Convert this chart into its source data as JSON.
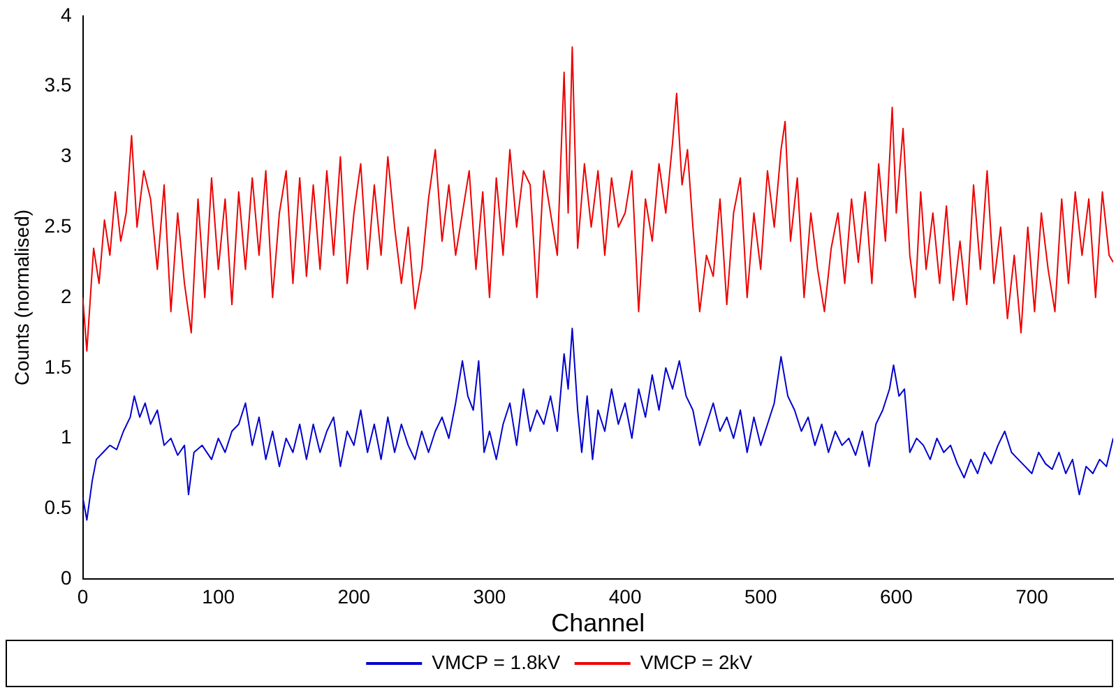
{
  "chart_data": {
    "type": "line",
    "xlabel": "Channel",
    "ylabel": "Counts (normalised)",
    "xlim": [
      0,
      760
    ],
    "xticks": [
      0,
      100,
      200,
      300,
      400,
      500,
      600,
      700
    ],
    "ylim": [
      0,
      4
    ],
    "yticks": [
      0,
      0.5,
      1,
      1.5,
      2,
      2.5,
      3,
      3.5,
      4
    ],
    "grid": false,
    "legend": "bottom",
    "marker": "none",
    "line_style": "solid",
    "series": [
      {
        "name": "VMCP = 1.8kV",
        "color": "#0000cc",
        "x": [
          0,
          3,
          7,
          10,
          15,
          20,
          25,
          30,
          35,
          38,
          42,
          46,
          50,
          55,
          60,
          65,
          70,
          75,
          78,
          82,
          88,
          95,
          100,
          105,
          110,
          115,
          120,
          125,
          130,
          135,
          140,
          145,
          150,
          155,
          160,
          165,
          170,
          175,
          180,
          185,
          190,
          195,
          200,
          205,
          210,
          215,
          220,
          225,
          230,
          235,
          240,
          245,
          250,
          255,
          260,
          265,
          270,
          275,
          280,
          284,
          288,
          292,
          296,
          300,
          305,
          310,
          315,
          320,
          325,
          330,
          335,
          340,
          345,
          350,
          355,
          358,
          361,
          365,
          368,
          372,
          376,
          380,
          385,
          390,
          395,
          400,
          405,
          410,
          415,
          420,
          425,
          430,
          435,
          440,
          445,
          450,
          455,
          460,
          465,
          470,
          475,
          480,
          485,
          490,
          495,
          500,
          505,
          510,
          515,
          520,
          525,
          530,
          535,
          540,
          545,
          550,
          555,
          560,
          565,
          570,
          575,
          580,
          585,
          590,
          595,
          598,
          602,
          606,
          610,
          615,
          620,
          625,
          630,
          635,
          640,
          645,
          650,
          655,
          660,
          665,
          670,
          675,
          680,
          685,
          690,
          695,
          700,
          705,
          710,
          715,
          720,
          725,
          730,
          735,
          740,
          745,
          750,
          755,
          760
        ],
        "values": [
          0.58,
          0.42,
          0.7,
          0.85,
          0.9,
          0.95,
          0.92,
          1.05,
          1.15,
          1.3,
          1.15,
          1.25,
          1.1,
          1.2,
          0.95,
          1.0,
          0.88,
          0.95,
          0.6,
          0.9,
          0.95,
          0.85,
          1.0,
          0.9,
          1.05,
          1.1,
          1.25,
          0.95,
          1.15,
          0.85,
          1.05,
          0.8,
          1.0,
          0.9,
          1.1,
          0.85,
          1.1,
          0.9,
          1.05,
          1.15,
          0.8,
          1.05,
          0.95,
          1.2,
          0.9,
          1.1,
          0.85,
          1.15,
          0.9,
          1.1,
          0.95,
          0.85,
          1.05,
          0.9,
          1.05,
          1.15,
          1.0,
          1.25,
          1.55,
          1.3,
          1.2,
          1.55,
          0.9,
          1.05,
          0.85,
          1.1,
          1.25,
          0.95,
          1.35,
          1.05,
          1.2,
          1.1,
          1.3,
          1.05,
          1.6,
          1.35,
          1.78,
          1.2,
          0.9,
          1.3,
          0.85,
          1.2,
          1.05,
          1.35,
          1.1,
          1.25,
          1.0,
          1.35,
          1.15,
          1.45,
          1.2,
          1.5,
          1.35,
          1.55,
          1.3,
          1.2,
          0.95,
          1.1,
          1.25,
          1.05,
          1.15,
          1.0,
          1.2,
          0.9,
          1.15,
          0.95,
          1.1,
          1.25,
          1.58,
          1.3,
          1.2,
          1.05,
          1.15,
          0.95,
          1.1,
          0.9,
          1.05,
          0.95,
          1.0,
          0.88,
          1.05,
          0.8,
          1.1,
          1.2,
          1.35,
          1.52,
          1.3,
          1.35,
          0.9,
          1.0,
          0.95,
          0.85,
          1.0,
          0.9,
          0.95,
          0.82,
          0.72,
          0.85,
          0.75,
          0.9,
          0.82,
          0.95,
          1.05,
          0.9,
          0.85,
          0.8,
          0.75,
          0.9,
          0.82,
          0.78,
          0.9,
          0.75,
          0.85,
          0.6,
          0.8,
          0.75,
          0.85,
          0.8,
          1.0
        ]
      },
      {
        "name": "VMCP = 2kV",
        "color": "#ee0000",
        "x": [
          0,
          3,
          8,
          12,
          16,
          20,
          24,
          28,
          32,
          36,
          40,
          45,
          50,
          55,
          60,
          65,
          70,
          75,
          80,
          85,
          90,
          95,
          100,
          105,
          110,
          115,
          120,
          125,
          130,
          135,
          140,
          145,
          150,
          155,
          160,
          165,
          170,
          175,
          180,
          185,
          190,
          195,
          200,
          205,
          210,
          215,
          220,
          225,
          230,
          235,
          240,
          245,
          250,
          255,
          260,
          265,
          270,
          275,
          280,
          285,
          290,
          295,
          300,
          305,
          310,
          315,
          320,
          325,
          330,
          335,
          340,
          345,
          350,
          355,
          358,
          361,
          365,
          370,
          375,
          380,
          385,
          390,
          395,
          400,
          405,
          410,
          415,
          420,
          425,
          430,
          435,
          438,
          442,
          446,
          450,
          455,
          460,
          465,
          470,
          475,
          480,
          485,
          490,
          495,
          500,
          505,
          510,
          515,
          518,
          522,
          527,
          532,
          537,
          542,
          547,
          552,
          557,
          562,
          567,
          572,
          577,
          582,
          587,
          592,
          597,
          600,
          605,
          610,
          614,
          618,
          622,
          627,
          632,
          637,
          642,
          647,
          652,
          657,
          662,
          667,
          672,
          677,
          682,
          687,
          692,
          697,
          702,
          707,
          712,
          717,
          722,
          727,
          732,
          737,
          742,
          747,
          752,
          757,
          760
        ],
        "values": [
          2.0,
          1.62,
          2.35,
          2.1,
          2.55,
          2.3,
          2.75,
          2.4,
          2.6,
          3.15,
          2.5,
          2.9,
          2.7,
          2.2,
          2.8,
          1.9,
          2.6,
          2.1,
          1.75,
          2.7,
          2.0,
          2.85,
          2.2,
          2.7,
          1.95,
          2.75,
          2.2,
          2.85,
          2.3,
          2.9,
          2.0,
          2.6,
          2.9,
          2.1,
          2.85,
          2.15,
          2.8,
          2.2,
          2.9,
          2.3,
          3.0,
          2.1,
          2.6,
          2.95,
          2.2,
          2.8,
          2.3,
          3.0,
          2.5,
          2.1,
          2.5,
          1.92,
          2.2,
          2.7,
          3.05,
          2.4,
          2.8,
          2.3,
          2.6,
          2.9,
          2.2,
          2.75,
          2.0,
          2.85,
          2.3,
          3.05,
          2.5,
          2.9,
          2.8,
          2.0,
          2.9,
          2.6,
          2.3,
          3.6,
          2.6,
          3.78,
          2.35,
          2.95,
          2.5,
          2.9,
          2.3,
          2.85,
          2.5,
          2.6,
          2.9,
          1.9,
          2.7,
          2.4,
          2.95,
          2.6,
          3.1,
          3.45,
          2.8,
          3.05,
          2.5,
          1.9,
          2.3,
          2.15,
          2.7,
          1.95,
          2.6,
          2.85,
          2.0,
          2.6,
          2.2,
          2.9,
          2.5,
          3.05,
          3.25,
          2.4,
          2.85,
          2.0,
          2.6,
          2.2,
          1.9,
          2.35,
          2.6,
          2.1,
          2.7,
          2.25,
          2.75,
          2.1,
          2.95,
          2.4,
          3.35,
          2.6,
          3.2,
          2.3,
          2.0,
          2.75,
          2.2,
          2.6,
          2.1,
          2.65,
          1.98,
          2.4,
          1.95,
          2.8,
          2.2,
          2.9,
          2.1,
          2.5,
          1.85,
          2.3,
          1.75,
          2.5,
          1.9,
          2.6,
          2.2,
          1.9,
          2.7,
          2.1,
          2.75,
          2.3,
          2.7,
          2.0,
          2.75,
          2.3,
          2.25
        ]
      }
    ]
  }
}
